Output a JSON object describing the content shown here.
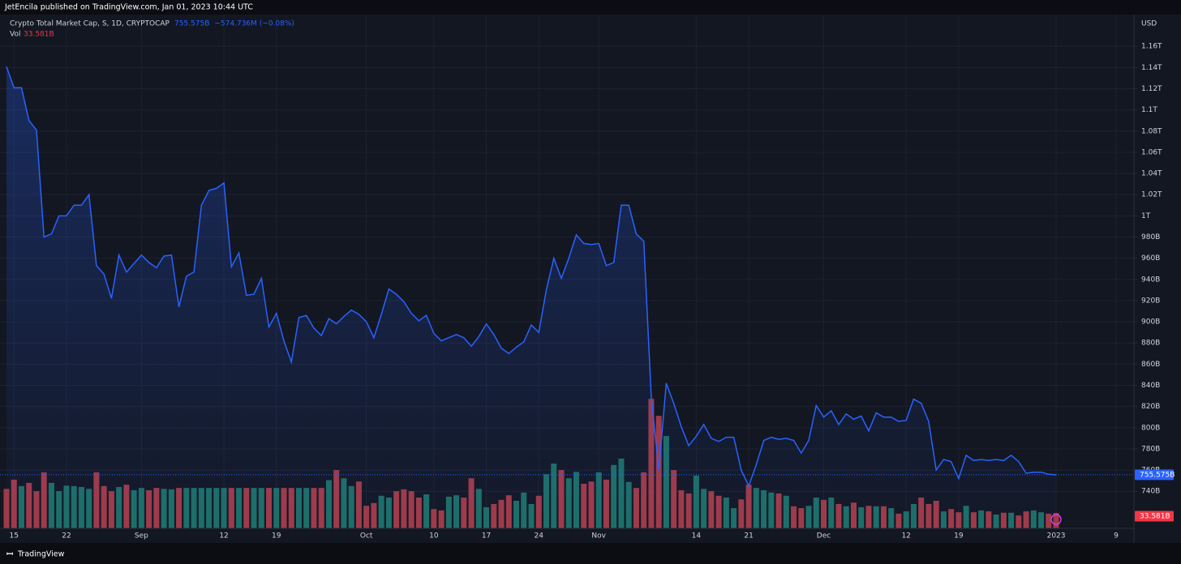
{
  "header": {
    "published": "JetEncila published on TradingView.com, Jan 01, 2023 10:44 UTC"
  },
  "footer": {
    "brand": "TradingView"
  },
  "chart_data": {
    "type": "line",
    "currency": "USD",
    "categories": [
      null,
      "15",
      null,
      null,
      null,
      null,
      null,
      null,
      "22",
      null,
      null,
      null,
      null,
      null,
      null,
      null,
      null,
      null,
      "Sep",
      null,
      null,
      null,
      null,
      null,
      null,
      null,
      null,
      null,
      null,
      "12",
      null,
      null,
      null,
      null,
      null,
      null,
      "19",
      null,
      null,
      null,
      null,
      null,
      null,
      null,
      null,
      null,
      null,
      null,
      "Oct",
      null,
      null,
      null,
      null,
      null,
      null,
      null,
      null,
      "10",
      null,
      null,
      null,
      null,
      null,
      null,
      "17",
      null,
      null,
      null,
      null,
      null,
      null,
      "24",
      null,
      null,
      null,
      null,
      null,
      null,
      null,
      "Nov",
      null,
      null,
      null,
      null,
      null,
      null,
      null,
      null,
      null,
      null,
      null,
      null,
      "14",
      null,
      null,
      null,
      null,
      null,
      null,
      "21",
      null,
      null,
      null,
      null,
      null,
      null,
      null,
      null,
      null,
      "Dec",
      null,
      null,
      null,
      null,
      null,
      null,
      null,
      null,
      null,
      null,
      "12",
      null,
      null,
      null,
      null,
      null,
      null,
      "19",
      null,
      null,
      null,
      null,
      null,
      null,
      null,
      null,
      null,
      null,
      null,
      null,
      "2023",
      null,
      null,
      null,
      null,
      null,
      null,
      null,
      "9"
    ],
    "ylim": [
      705,
      1190
    ],
    "yticks": [
      {
        "value": 740,
        "label": "740B"
      },
      {
        "value": 760,
        "label": "760B"
      },
      {
        "value": 780,
        "label": "780B"
      },
      {
        "value": 800,
        "label": "800B"
      },
      {
        "value": 820,
        "label": "820B"
      },
      {
        "value": 840,
        "label": "840B"
      },
      {
        "value": 860,
        "label": "860B"
      },
      {
        "value": 880,
        "label": "880B"
      },
      {
        "value": 900,
        "label": "900B"
      },
      {
        "value": 920,
        "label": "920B"
      },
      {
        "value": 940,
        "label": "940B"
      },
      {
        "value": 960,
        "label": "960B"
      },
      {
        "value": 980,
        "label": "980B"
      },
      {
        "value": 1000,
        "label": "1T"
      },
      {
        "value": 1020,
        "label": "1.02T"
      },
      {
        "value": 1040,
        "label": "1.04T"
      },
      {
        "value": 1060,
        "label": "1.06T"
      },
      {
        "value": 1080,
        "label": "1.08T"
      },
      {
        "value": 1100,
        "label": "1.1T"
      },
      {
        "value": 1120,
        "label": "1.12T"
      },
      {
        "value": 1140,
        "label": "1.14T"
      },
      {
        "value": 1160,
        "label": "1.16T"
      }
    ],
    "y2lim": [
      0,
      300
    ],
    "grid": true,
    "series": [
      {
        "name": "Crypto Total Market Cap, S, 1D, CRYPTOCAP",
        "color": "#2962ff",
        "last_label": "755.575B",
        "change": "−574.736M (−0.08%)",
        "values": [
          1141,
          1121,
          1121,
          1090,
          1081,
          980,
          983,
          1000,
          1000,
          1010,
          1010,
          1020,
          953,
          945,
          922,
          963,
          947,
          955,
          963,
          956,
          951,
          962,
          963,
          914,
          943,
          947,
          1010,
          1024,
          1026,
          1031,
          952,
          965,
          925,
          926,
          941,
          895,
          908,
          882,
          862,
          904,
          906,
          894,
          887,
          903,
          898,
          905,
          911,
          907,
          900,
          885,
          907,
          931,
          926,
          919,
          908,
          901,
          906,
          889,
          882,
          885,
          888,
          885,
          877,
          886,
          898,
          888,
          875,
          870,
          876,
          881,
          897,
          890,
          930,
          960,
          941,
          960,
          982,
          974,
          973,
          974,
          953,
          956,
          1010,
          1010,
          983,
          976,
          829,
          760,
          842,
          823,
          801,
          783,
          792,
          803,
          790,
          787,
          791,
          791,
          760,
          745,
          765,
          788,
          791,
          789,
          790,
          788,
          776,
          788,
          821,
          810,
          816,
          803,
          813,
          808,
          811,
          797,
          814,
          810,
          810,
          806,
          807,
          827,
          823,
          806,
          760,
          770,
          768,
          752,
          774,
          769,
          770,
          769,
          770,
          769,
          774,
          768,
          757,
          758,
          758,
          756,
          755.575,
          null,
          null,
          null,
          null,
          null,
          null,
          null,
          null
        ]
      },
      {
        "name": "Vol",
        "type": "bar",
        "axis": "y2",
        "up_color": "#1d6f66",
        "down_color": "#a13a46",
        "last_label": "33.581B",
        "values": [
          86,
          106,
          92,
          99,
          81,
          122,
          99,
          81,
          93,
          92,
          90,
          86,
          122,
          92,
          81,
          90,
          95,
          83,
          88,
          83,
          88,
          86,
          85,
          88,
          88,
          88,
          88,
          88,
          88,
          88,
          88,
          88,
          88,
          88,
          88,
          88,
          88,
          88,
          88,
          88,
          88,
          88,
          88,
          105,
          127,
          109,
          92,
          102,
          49,
          55,
          71,
          67,
          81,
          85,
          81,
          67,
          74,
          42,
          39,
          69,
          72,
          67,
          109,
          86,
          46,
          53,
          62,
          72,
          60,
          78,
          53,
          71,
          118,
          141,
          127,
          109,
          123,
          97,
          102,
          122,
          106,
          138,
          152,
          101,
          88,
          122,
          282,
          245,
          201,
          127,
          83,
          76,
          115,
          86,
          81,
          71,
          67,
          44,
          63,
          95,
          88,
          83,
          78,
          76,
          71,
          48,
          44,
          49,
          67,
          62,
          67,
          53,
          48,
          56,
          46,
          49,
          48,
          48,
          44,
          32,
          37,
          53,
          67,
          53,
          60,
          37,
          42,
          35,
          49,
          35,
          39,
          37,
          30,
          34,
          34,
          28,
          37,
          39,
          35,
          32,
          33.581,
          null,
          null,
          null,
          null,
          null,
          null,
          null,
          null
        ]
      }
    ]
  }
}
